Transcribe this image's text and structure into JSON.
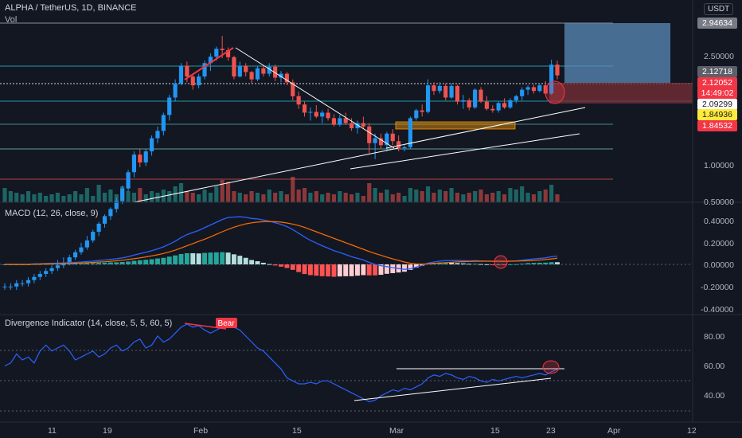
{
  "header": {
    "symbol": "ALPHA / TetherUS, 1D, BINANCE",
    "volume_label": "Vol",
    "currency": "USDT"
  },
  "price_tags": [
    {
      "value": "2.94634",
      "kind": "level",
      "color": "#787b86",
      "textColor": "#ffffff"
    },
    {
      "value": "2.12718",
      "kind": "level",
      "color": "#5d606b",
      "textColor": "#ffffff"
    },
    {
      "value": "2.12052",
      "kind": "last",
      "color": "#f23645",
      "textColor": "#ffffff"
    },
    {
      "value": "14:49:02",
      "kind": "countdown",
      "color": "#f23645",
      "textColor": "#ffffff"
    },
    {
      "value": "2.09299",
      "kind": "level",
      "color": "#ffffff",
      "textColor": "#131722"
    },
    {
      "value": "1.84936",
      "kind": "level",
      "color": "#ffeb3b",
      "textColor": "#131722"
    },
    {
      "value": "1.84532",
      "kind": "level",
      "color": "#f23645",
      "textColor": "#ffffff"
    }
  ],
  "price_axis_ticks": [
    "2.50000",
    "1.00000",
    "0.50000"
  ],
  "macd_panel": {
    "title": "MACD (12, 26, close, 9)",
    "ticks": [
      "0.40000",
      "0.20000",
      "0.00000",
      "-0.20000",
      "-0.40000"
    ]
  },
  "divergence_panel": {
    "title": "Divergence Indicator (14, close, 5, 5, 60, 5)",
    "ticks": [
      "80.00",
      "60.00",
      "40.00"
    ],
    "bear_label": "Bear"
  },
  "time_axis": [
    "11",
    "19",
    "Feb",
    "15",
    "Mar",
    "15",
    "23",
    "Apr",
    "12"
  ],
  "colors": {
    "bull": "#26a69a",
    "bear": "#ef5350",
    "candle_up": "#2196f3",
    "macd_line": "#2962ff",
    "signal_line": "#ff6d00",
    "rsi": "#2962ff"
  },
  "chart_data": [
    {
      "type": "candlestick",
      "title": "ALPHA / TetherUS, 1D, BINANCE",
      "y_scale": "log",
      "y_ticks": [
        2.5,
        1.0,
        0.5
      ],
      "x_ticks": [
        "11",
        "19",
        "Feb",
        "15",
        "Mar",
        "15",
        "23",
        "Apr",
        "12"
      ],
      "candles": [
        [
          0.36,
          0.37,
          0.35,
          0.36
        ],
        [
          0.36,
          0.37,
          0.35,
          0.36
        ],
        [
          0.36,
          0.38,
          0.35,
          0.37
        ],
        [
          0.37,
          0.38,
          0.36,
          0.37
        ],
        [
          0.37,
          0.39,
          0.36,
          0.38
        ],
        [
          0.38,
          0.4,
          0.37,
          0.39
        ],
        [
          0.39,
          0.41,
          0.38,
          0.4
        ],
        [
          0.4,
          0.42,
          0.39,
          0.41
        ],
        [
          0.41,
          0.43,
          0.4,
          0.42
        ],
        [
          0.42,
          0.45,
          0.41,
          0.43
        ],
        [
          0.43,
          0.46,
          0.42,
          0.44
        ],
        [
          0.44,
          0.47,
          0.43,
          0.46
        ],
        [
          0.46,
          0.49,
          0.45,
          0.48
        ],
        [
          0.48,
          0.52,
          0.47,
          0.5
        ],
        [
          0.5,
          0.55,
          0.49,
          0.53
        ],
        [
          0.53,
          0.58,
          0.52,
          0.57
        ],
        [
          0.57,
          0.62,
          0.55,
          0.61
        ],
        [
          0.61,
          0.66,
          0.59,
          0.65
        ],
        [
          0.65,
          0.7,
          0.63,
          0.69
        ],
        [
          0.69,
          0.76,
          0.67,
          0.74
        ],
        [
          0.74,
          0.84,
          0.72,
          0.82
        ],
        [
          0.82,
          0.96,
          0.8,
          0.94
        ],
        [
          0.94,
          1.12,
          0.9,
          1.09
        ],
        [
          1.09,
          1.14,
          0.98,
          1.02
        ],
        [
          1.02,
          1.14,
          0.99,
          1.12
        ],
        [
          1.12,
          1.28,
          1.08,
          1.25
        ],
        [
          1.25,
          1.38,
          1.2,
          1.33
        ],
        [
          1.33,
          1.55,
          1.28,
          1.52
        ],
        [
          1.52,
          1.8,
          1.45,
          1.76
        ],
        [
          1.76,
          2.05,
          1.7,
          1.98
        ],
        [
          1.98,
          2.35,
          1.95,
          2.3
        ],
        [
          2.3,
          2.38,
          2.0,
          2.1
        ],
        [
          2.1,
          2.15,
          1.88,
          1.95
        ],
        [
          1.95,
          2.15,
          1.9,
          2.1
        ],
        [
          2.1,
          2.4,
          2.05,
          2.35
        ],
        [
          2.35,
          2.55,
          2.2,
          2.48
        ],
        [
          2.48,
          2.7,
          2.4,
          2.65
        ],
        [
          2.65,
          2.95,
          2.45,
          2.62
        ],
        [
          2.62,
          2.68,
          2.4,
          2.47
        ],
        [
          2.47,
          2.5,
          2.05,
          2.1
        ],
        [
          2.1,
          2.38,
          2.08,
          2.3
        ],
        [
          2.3,
          2.35,
          2.1,
          2.18
        ],
        [
          2.18,
          2.2,
          1.98,
          2.05
        ],
        [
          2.05,
          2.3,
          2.02,
          2.25
        ],
        [
          2.25,
          2.3,
          2.1,
          2.15
        ],
        [
          2.15,
          2.35,
          2.1,
          2.28
        ],
        [
          2.28,
          2.32,
          2.02,
          2.08
        ],
        [
          2.08,
          2.2,
          2.0,
          2.15
        ],
        [
          2.15,
          2.18,
          1.95,
          2.0
        ],
        [
          2.0,
          2.05,
          1.72,
          1.78
        ],
        [
          1.78,
          1.85,
          1.6,
          1.66
        ],
        [
          1.66,
          1.7,
          1.5,
          1.55
        ],
        [
          1.55,
          1.62,
          1.45,
          1.56
        ],
        [
          1.56,
          1.65,
          1.48,
          1.5
        ],
        [
          1.5,
          1.58,
          1.42,
          1.55
        ],
        [
          1.55,
          1.6,
          1.45,
          1.48
        ],
        [
          1.48,
          1.53,
          1.38,
          1.4
        ],
        [
          1.4,
          1.52,
          1.38,
          1.48
        ],
        [
          1.48,
          1.55,
          1.4,
          1.42
        ],
        [
          1.42,
          1.48,
          1.33,
          1.36
        ],
        [
          1.36,
          1.45,
          1.3,
          1.42
        ],
        [
          1.42,
          1.5,
          1.35,
          1.38
        ],
        [
          1.38,
          1.42,
          1.1,
          1.2
        ],
        [
          1.2,
          1.3,
          1.05,
          1.25
        ],
        [
          1.25,
          1.3,
          1.15,
          1.18
        ],
        [
          1.18,
          1.32,
          1.12,
          1.3
        ],
        [
          1.3,
          1.35,
          1.18,
          1.22
        ],
        [
          1.22,
          1.28,
          1.12,
          1.15
        ],
        [
          1.15,
          1.18,
          1.12,
          1.16
        ],
        [
          1.16,
          1.5,
          1.14,
          1.48
        ],
        [
          1.48,
          1.6,
          1.45,
          1.58
        ],
        [
          1.58,
          1.66,
          1.5,
          1.56
        ],
        [
          1.56,
          2.05,
          1.54,
          1.95
        ],
        [
          1.95,
          2.0,
          1.8,
          1.86
        ],
        [
          1.86,
          2.0,
          1.82,
          1.94
        ],
        [
          1.94,
          1.98,
          1.72,
          1.76
        ],
        [
          1.76,
          1.98,
          1.74,
          1.94
        ],
        [
          1.94,
          1.96,
          1.66,
          1.7
        ],
        [
          1.7,
          1.8,
          1.6,
          1.72
        ],
        [
          1.72,
          1.75,
          1.58,
          1.62
        ],
        [
          1.62,
          1.9,
          1.6,
          1.88
        ],
        [
          1.88,
          1.92,
          1.68,
          1.7
        ],
        [
          1.7,
          1.78,
          1.58,
          1.6
        ],
        [
          1.6,
          1.65,
          1.55,
          1.58
        ],
        [
          1.58,
          1.7,
          1.55,
          1.68
        ],
        [
          1.68,
          1.75,
          1.6,
          1.62
        ],
        [
          1.62,
          1.75,
          1.6,
          1.72
        ],
        [
          1.72,
          1.8,
          1.68,
          1.78
        ],
        [
          1.78,
          1.92,
          1.72,
          1.88
        ],
        [
          1.88,
          1.95,
          1.8,
          1.92
        ],
        [
          1.92,
          1.96,
          1.82,
          1.86
        ],
        [
          1.86,
          1.98,
          1.84,
          1.95
        ],
        [
          1.95,
          2.02,
          1.8,
          1.82
        ],
        [
          1.82,
          2.42,
          1.8,
          2.32
        ],
        [
          2.32,
          2.4,
          2.05,
          2.12
        ]
      ],
      "volume": [
        0.9,
        0.7,
        0.6,
        0.5,
        0.7,
        0.5,
        0.6,
        0.4,
        0.5,
        0.6,
        0.4,
        0.5,
        0.7,
        0.5,
        0.9,
        0.4,
        1.1,
        0.6,
        0.8,
        0.5,
        1.0,
        0.7,
        0.6,
        0.9,
        0.5,
        0.7,
        0.6,
        0.8,
        0.7,
        1.0,
        1.2,
        0.7,
        0.6,
        0.5,
        0.8,
        0.6,
        1.0,
        1.4,
        1.3,
        0.7,
        0.6,
        0.5,
        0.7,
        0.6,
        0.5,
        0.8,
        0.6,
        0.7,
        0.5,
        1.6,
        0.8,
        0.9,
        0.6,
        0.7,
        0.5,
        0.6,
        0.5,
        0.7,
        0.6,
        0.5,
        0.6,
        0.4,
        1.2,
        0.9,
        0.6,
        0.8,
        0.5,
        0.6,
        0.4,
        0.9,
        0.8,
        0.7,
        1.0,
        0.6,
        0.8,
        0.7,
        0.9,
        0.6,
        0.5,
        0.6,
        0.7,
        0.8,
        0.5,
        0.6,
        0.7,
        0.5,
        0.9,
        0.8,
        1.0,
        0.6,
        0.5,
        0.7,
        0.8,
        1.1,
        0.5
      ]
    },
    {
      "type": "line",
      "title": "MACD (12, 26, close, 9)",
      "y_ticks": [
        0.4,
        0.2,
        0.0,
        -0.2,
        -0.4
      ],
      "series": [
        {
          "values": [
            0,
            0,
            0,
            0,
            0,
            0.005,
            0.006,
            0.008,
            0.01,
            0.012,
            0.014,
            0.016,
            0.019,
            0.022,
            0.026,
            0.03,
            0.035,
            0.04,
            0.046,
            0.052,
            0.06,
            0.07,
            0.085,
            0.098,
            0.11,
            0.125,
            0.142,
            0.16,
            0.185,
            0.212,
            0.245,
            0.272,
            0.292,
            0.31,
            0.335,
            0.36,
            0.385,
            0.41,
            0.428,
            0.432,
            0.435,
            0.43,
            0.42,
            0.415,
            0.405,
            0.395,
            0.38,
            0.365,
            0.345,
            0.318,
            0.285,
            0.25,
            0.22,
            0.195,
            0.17,
            0.148,
            0.125,
            0.108,
            0.09,
            0.07,
            0.055,
            0.04,
            0.018,
            0.0,
            -0.012,
            -0.02,
            -0.03,
            -0.038,
            -0.045,
            -0.04,
            -0.025,
            -0.01,
            0.012,
            0.022,
            0.03,
            0.034,
            0.036,
            0.035,
            0.034,
            0.033,
            0.034,
            0.032,
            0.03,
            0.028,
            0.029,
            0.028,
            0.03,
            0.032,
            0.038,
            0.045,
            0.05,
            0.055,
            0.06,
            0.07,
            0.076
          ]
        },
        {
          "values": [
            0,
            0,
            0,
            0,
            0,
            0.002,
            0.003,
            0.004,
            0.005,
            0.006,
            0.008,
            0.009,
            0.011,
            0.013,
            0.015,
            0.018,
            0.021,
            0.024,
            0.028,
            0.033,
            0.038,
            0.044,
            0.052,
            0.06,
            0.068,
            0.078,
            0.088,
            0.1,
            0.114,
            0.13,
            0.15,
            0.17,
            0.19,
            0.21,
            0.23,
            0.252,
            0.275,
            0.298,
            0.32,
            0.34,
            0.356,
            0.37,
            0.38,
            0.386,
            0.39,
            0.392,
            0.39,
            0.386,
            0.378,
            0.368,
            0.355,
            0.338,
            0.318,
            0.298,
            0.278,
            0.258,
            0.238,
            0.218,
            0.198,
            0.178,
            0.158,
            0.138,
            0.118,
            0.1,
            0.083,
            0.066,
            0.05,
            0.036,
            0.022,
            0.01,
            0.005,
            0.003,
            0.004,
            0.008,
            0.012,
            0.016,
            0.02,
            0.023,
            0.025,
            0.027,
            0.028,
            0.029,
            0.029,
            0.029,
            0.029,
            0.029,
            0.029,
            0.03,
            0.031,
            0.033,
            0.036,
            0.04,
            0.044,
            0.05,
            0.056
          ]
        }
      ]
    },
    {
      "type": "line",
      "title": "Divergence Indicator (14, close, 5, 5, 60, 5)",
      "y_ticks": [
        80.0,
        60.0,
        40.0
      ],
      "series": [
        {
          "values": [
            60,
            62,
            68,
            64,
            66,
            62,
            70,
            74,
            70,
            72,
            74,
            70,
            64,
            66,
            68,
            70,
            66,
            68,
            72,
            74,
            70,
            72,
            76,
            78,
            72,
            74,
            80,
            76,
            78,
            82,
            86,
            88,
            86,
            87,
            84,
            82,
            84,
            86,
            88,
            86,
            84,
            80,
            76,
            72,
            70,
            66,
            62,
            58,
            52,
            50,
            48,
            48,
            49,
            48,
            50,
            50,
            48,
            46,
            44,
            42,
            40,
            38,
            36,
            37,
            40,
            42,
            44,
            43,
            45,
            44,
            46,
            48,
            52,
            54,
            53,
            55,
            54,
            52,
            51,
            53,
            52,
            50,
            49,
            51,
            50,
            51,
            52,
            53,
            52,
            53,
            54,
            55,
            54,
            56,
            58
          ]
        }
      ]
    }
  ]
}
